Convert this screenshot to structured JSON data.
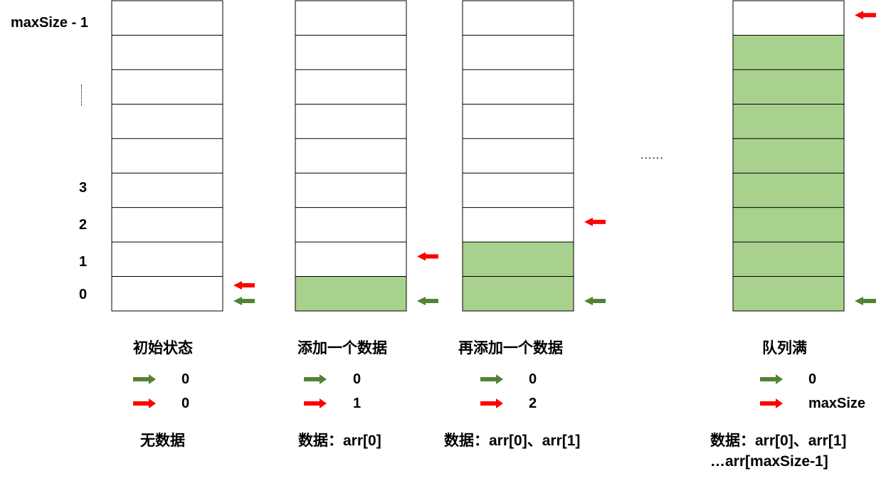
{
  "axis_labels": {
    "top": "maxSize - 1",
    "vdots": "......",
    "i3": "3",
    "i2": "2",
    "i1": "1",
    "i0": "0"
  },
  "hdots": "......",
  "colors": {
    "filled": "#a9d18e",
    "front_arrow": "#548235",
    "rear_arrow": "#ff0000",
    "grid": "#000000"
  },
  "states": [
    {
      "id": "initial",
      "title": "初始状态",
      "front_value": "0",
      "rear_value": "0",
      "data_line1": "无数据",
      "data_line2": "",
      "filled_from_bottom": 0,
      "rear_index": 0,
      "front_index": 0
    },
    {
      "id": "add-one",
      "title": "添加一个数据",
      "front_value": "0",
      "rear_value": "1",
      "data_line1": "数据：arr[0]",
      "data_line2": "",
      "filled_from_bottom": 1,
      "rear_index": 1,
      "front_index": 0
    },
    {
      "id": "add-another",
      "title": "再添加一个数据",
      "front_value": "0",
      "rear_value": "2",
      "data_line1": "数据：arr[0]、arr[1]",
      "data_line2": "",
      "filled_from_bottom": 2,
      "rear_index": 2,
      "front_index": 0
    },
    {
      "id": "full",
      "title": "队列满",
      "front_value": "0",
      "rear_value": "maxSize",
      "data_line1": "数据：arr[0]、arr[1]",
      "data_line2": "…arr[maxSize-1]",
      "filled_from_bottom": 8,
      "rear_index": 8,
      "front_index": 0
    }
  ]
}
